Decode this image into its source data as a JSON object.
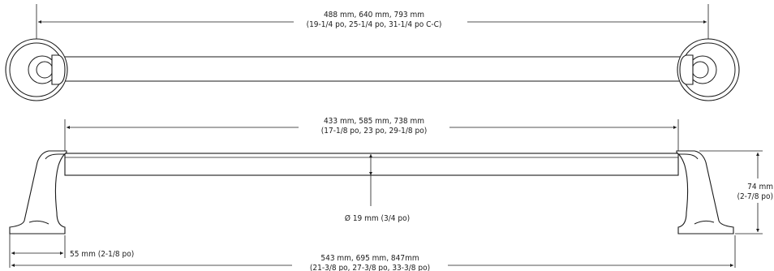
{
  "top_view": {
    "cc_line1": "488 mm,  640 mm,  793 mm",
    "cc_line2": "(19-1/4 po,  25-1/4 po,  31-1/4 po C-C)"
  },
  "front_view": {
    "bar_line1": "433 mm,  585 mm,  738 mm",
    "bar_line2": "(17-1/8 po,  23 po,  29-1/8 po)",
    "diameter": "Ø 19 mm (3/4 po)",
    "height_line1": "74 mm",
    "height_line2": "(2-7/8 po)",
    "projection": "55 mm (2-1/8 po)",
    "overall_line1": "543 mm,  695 mm,  847mm",
    "overall_line2": "(21-3/8 po,  27-3/8 po,  33-3/8 po)"
  }
}
